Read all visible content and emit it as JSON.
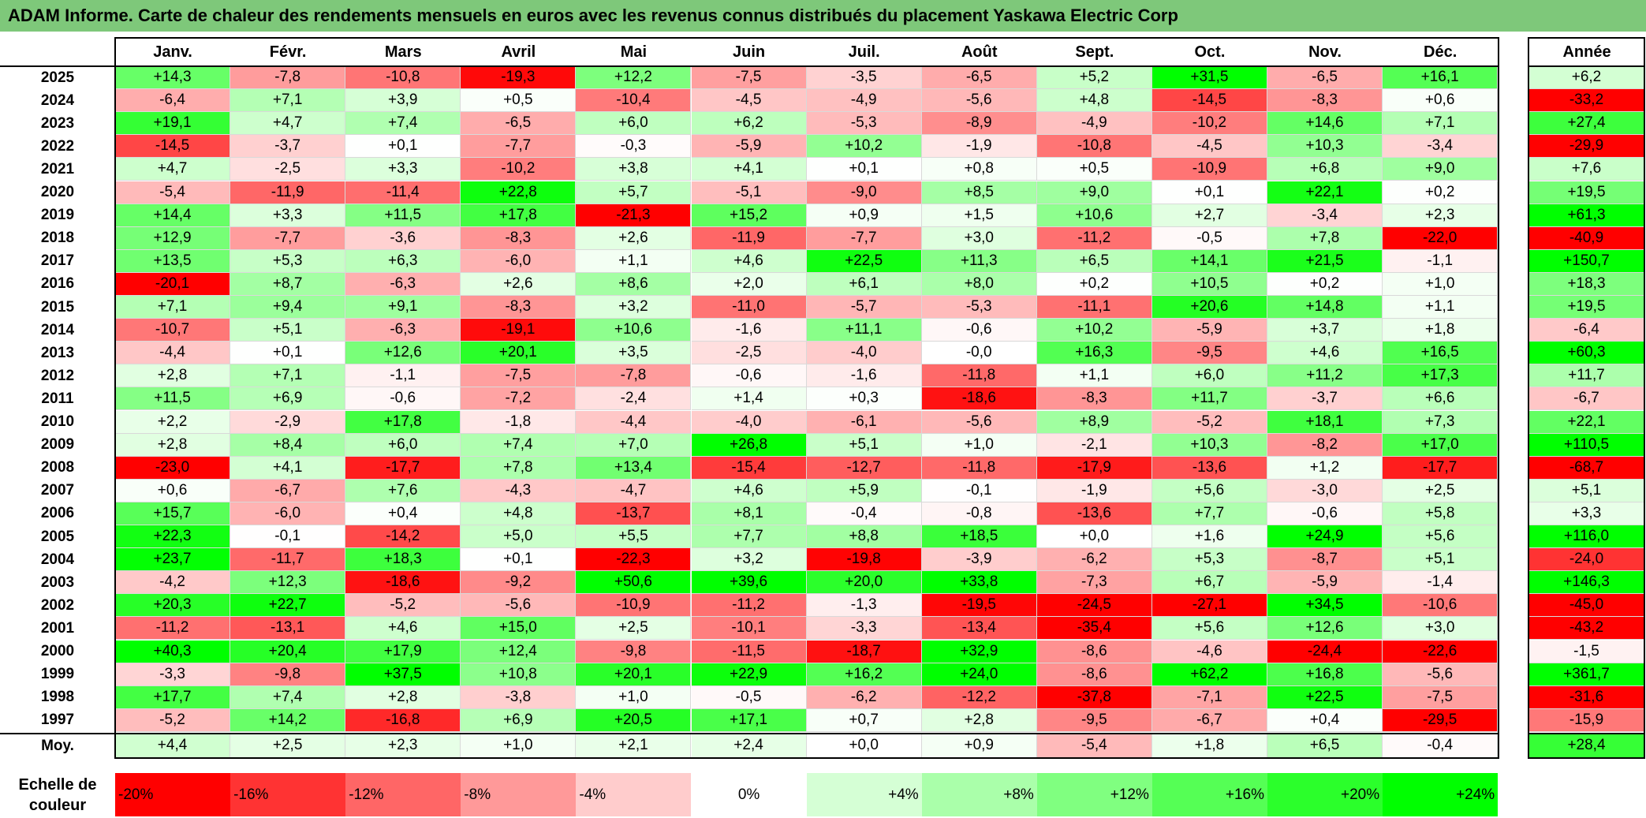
{
  "title": "ADAM Informe. Carte de chaleur des rendements mensuels en euros avec les revenus connus distribués du placement Yaskawa Electric Corp",
  "chart_data": {
    "type": "heatmap",
    "columns": [
      "Janv.",
      "Févr.",
      "Mars",
      "Avril",
      "Mai",
      "Juin",
      "Juil.",
      "Août",
      "Sept.",
      "Oct.",
      "Nov.",
      "Déc."
    ],
    "year_column_label": "Année",
    "rows": [
      {
        "year": "2025",
        "values": [
          "+14,3",
          "-7,8",
          "-10,8",
          "-19,3",
          "+12,2",
          "-7,5",
          "-3,5",
          "-6,5",
          "+5,2",
          "+31,5",
          "-6,5",
          "+16,1"
        ],
        "annual": "+6,2"
      },
      {
        "year": "2024",
        "values": [
          "-6,4",
          "+7,1",
          "+3,9",
          "+0,5",
          "-10,4",
          "-4,5",
          "-4,9",
          "-5,6",
          "+4,8",
          "-14,5",
          "-8,3",
          "+0,6"
        ],
        "annual": "-33,2"
      },
      {
        "year": "2023",
        "values": [
          "+19,1",
          "+4,7",
          "+7,4",
          "-6,5",
          "+6,0",
          "+6,2",
          "-5,3",
          "-8,9",
          "-4,9",
          "-10,2",
          "+14,6",
          "+7,1"
        ],
        "annual": "+27,4"
      },
      {
        "year": "2022",
        "values": [
          "-14,5",
          "-3,7",
          "+0,1",
          "-7,7",
          "-0,3",
          "-5,9",
          "+10,2",
          "-1,9",
          "-10,8",
          "-4,5",
          "+10,3",
          "-3,4"
        ],
        "annual": "-29,9"
      },
      {
        "year": "2021",
        "values": [
          "+4,7",
          "-2,5",
          "+3,3",
          "-10,2",
          "+3,8",
          "+4,1",
          "+0,1",
          "+0,8",
          "+0,5",
          "-10,9",
          "+6,8",
          "+9,0"
        ],
        "annual": "+7,6"
      },
      {
        "year": "2020",
        "values": [
          "-5,4",
          "-11,9",
          "-11,4",
          "+22,8",
          "+5,7",
          "-5,1",
          "-9,0",
          "+8,5",
          "+9,0",
          "+0,1",
          "+22,1",
          "+0,2"
        ],
        "annual": "+19,5"
      },
      {
        "year": "2019",
        "values": [
          "+14,4",
          "+3,3",
          "+11,5",
          "+17,8",
          "-21,3",
          "+15,2",
          "+0,9",
          "+1,5",
          "+10,6",
          "+2,7",
          "-3,4",
          "+2,3"
        ],
        "annual": "+61,3"
      },
      {
        "year": "2018",
        "values": [
          "+12,9",
          "-7,7",
          "-3,6",
          "-8,3",
          "+2,6",
          "-11,9",
          "-7,7",
          "+3,0",
          "-11,2",
          "-0,5",
          "+7,8",
          "-22,0"
        ],
        "annual": "-40,9"
      },
      {
        "year": "2017",
        "values": [
          "+13,5",
          "+5,3",
          "+6,3",
          "-6,0",
          "+1,1",
          "+4,6",
          "+22,5",
          "+11,3",
          "+6,5",
          "+14,1",
          "+21,5",
          "-1,1"
        ],
        "annual": "+150,7"
      },
      {
        "year": "2016",
        "values": [
          "-20,1",
          "+8,7",
          "-6,3",
          "+2,6",
          "+8,6",
          "+2,0",
          "+6,1",
          "+8,0",
          "+0,2",
          "+10,5",
          "+0,2",
          "+1,0"
        ],
        "annual": "+18,3"
      },
      {
        "year": "2015",
        "values": [
          "+7,1",
          "+9,4",
          "+9,1",
          "-8,3",
          "+3,2",
          "-11,0",
          "-5,7",
          "-5,3",
          "-11,1",
          "+20,6",
          "+14,8",
          "+1,1"
        ],
        "annual": "+19,5"
      },
      {
        "year": "2014",
        "values": [
          "-10,7",
          "+5,1",
          "-6,3",
          "-19,1",
          "+10,6",
          "-1,6",
          "+11,1",
          "-0,6",
          "+10,2",
          "-5,9",
          "+3,7",
          "+1,8"
        ],
        "annual": "-6,4"
      },
      {
        "year": "2013",
        "values": [
          "-4,4",
          "+0,1",
          "+12,6",
          "+20,1",
          "+3,5",
          "-2,5",
          "-4,0",
          "-0,0",
          "+16,3",
          "-9,5",
          "+4,6",
          "+16,5"
        ],
        "annual": "+60,3"
      },
      {
        "year": "2012",
        "values": [
          "+2,8",
          "+7,1",
          "-1,1",
          "-7,5",
          "-7,8",
          "-0,6",
          "-1,6",
          "-11,8",
          "+1,1",
          "+6,0",
          "+11,2",
          "+17,3"
        ],
        "annual": "+11,7"
      },
      {
        "year": "2011",
        "values": [
          "+11,5",
          "+6,9",
          "-0,6",
          "-7,2",
          "-2,4",
          "+1,4",
          "+0,3",
          "-18,6",
          "-8,3",
          "+11,7",
          "-3,7",
          "+6,6"
        ],
        "annual": "-6,7"
      },
      {
        "year": "2010",
        "values": [
          "+2,2",
          "-2,9",
          "+17,8",
          "-1,8",
          "-4,4",
          "-4,0",
          "-6,1",
          "-5,6",
          "+8,9",
          "-5,2",
          "+18,1",
          "+7,3"
        ],
        "annual": "+22,1"
      },
      {
        "year": "2009",
        "values": [
          "+2,8",
          "+8,4",
          "+6,0",
          "+7,4",
          "+7,0",
          "+26,8",
          "+5,1",
          "+1,0",
          "-2,1",
          "+10,3",
          "-8,2",
          "+17,0"
        ],
        "annual": "+110,5"
      },
      {
        "year": "2008",
        "values": [
          "-23,0",
          "+4,1",
          "-17,7",
          "+7,8",
          "+13,4",
          "-15,4",
          "-12,7",
          "-11,8",
          "-17,9",
          "-13,6",
          "+1,2",
          "-17,7"
        ],
        "annual": "-68,7"
      },
      {
        "year": "2007",
        "values": [
          "+0,6",
          "-6,7",
          "+7,6",
          "-4,3",
          "-4,7",
          "+4,6",
          "+5,9",
          "-0,1",
          "-1,9",
          "+5,6",
          "-3,0",
          "+2,5"
        ],
        "annual": "+5,1"
      },
      {
        "year": "2006",
        "values": [
          "+15,7",
          "-6,0",
          "+0,4",
          "+4,8",
          "-13,7",
          "+8,1",
          "-0,4",
          "-0,8",
          "-13,6",
          "+7,7",
          "-0,6",
          "+5,8"
        ],
        "annual": "+3,3"
      },
      {
        "year": "2005",
        "values": [
          "+22,3",
          "-0,1",
          "-14,2",
          "+5,0",
          "+5,5",
          "+7,7",
          "+8,8",
          "+18,5",
          "+0,0",
          "+1,6",
          "+24,9",
          "+5,6"
        ],
        "annual": "+116,0"
      },
      {
        "year": "2004",
        "values": [
          "+23,7",
          "-11,7",
          "+18,3",
          "+0,1",
          "-22,3",
          "+3,2",
          "-19,8",
          "-3,9",
          "-6,2",
          "+5,3",
          "-8,7",
          "+5,1"
        ],
        "annual": "-24,0"
      },
      {
        "year": "2003",
        "values": [
          "-4,2",
          "+12,3",
          "-18,6",
          "-9,2",
          "+50,6",
          "+39,6",
          "+20,0",
          "+33,8",
          "-7,3",
          "+6,7",
          "-5,9",
          "-1,4"
        ],
        "annual": "+146,3"
      },
      {
        "year": "2002",
        "values": [
          "+20,3",
          "+22,7",
          "-5,2",
          "-5,6",
          "-10,9",
          "-11,2",
          "-1,3",
          "-19,5",
          "-24,5",
          "-27,1",
          "+34,5",
          "-10,6"
        ],
        "annual": "-45,0"
      },
      {
        "year": "2001",
        "values": [
          "-11,2",
          "-13,1",
          "+4,6",
          "+15,0",
          "+2,5",
          "-10,1",
          "-3,3",
          "-13,4",
          "-35,4",
          "+5,6",
          "+12,6",
          "+3,0"
        ],
        "annual": "-43,2"
      },
      {
        "year": "2000",
        "values": [
          "+40,3",
          "+20,4",
          "+17,9",
          "+12,4",
          "-9,8",
          "-11,5",
          "-18,7",
          "+32,9",
          "-8,6",
          "-4,6",
          "-24,4",
          "-22,6"
        ],
        "annual": "-1,5"
      },
      {
        "year": "1999",
        "values": [
          "-3,3",
          "-9,8",
          "+37,5",
          "+10,8",
          "+20,1",
          "+22,9",
          "+16,2",
          "+24,0",
          "-8,6",
          "+62,2",
          "+16,8",
          "-5,6"
        ],
        "annual": "+361,7"
      },
      {
        "year": "1998",
        "values": [
          "+17,7",
          "+7,4",
          "+2,8",
          "-3,8",
          "+1,0",
          "-0,5",
          "-6,2",
          "-12,2",
          "-37,8",
          "-7,1",
          "+22,5",
          "-7,5"
        ],
        "annual": "-31,6"
      },
      {
        "year": "1997",
        "values": [
          "-5,2",
          "+14,2",
          "-16,8",
          "+6,9",
          "+20,5",
          "+17,1",
          "+0,7",
          "+2,8",
          "-9,5",
          "-6,7",
          "+0,4",
          "-29,5"
        ],
        "annual": "-15,9"
      }
    ],
    "average_row": {
      "label": "Moy.",
      "values": [
        "+4,4",
        "+2,5",
        "+2,3",
        "+1,0",
        "+2,1",
        "+2,4",
        "+0,0",
        "+0,9",
        "-5,4",
        "+1,8",
        "+6,5",
        "-0,4"
      ],
      "annual": "+28,4"
    },
    "color_scale": {
      "label_line1": "Echelle de",
      "label_line2": "couleur",
      "stops": [
        "-20%",
        "-16%",
        "-12%",
        "-8%",
        "-4%",
        "0%",
        "+4%",
        "+8%",
        "+12%",
        "+16%",
        "+20%",
        "+24%"
      ],
      "negative_color": "#ff0000",
      "neutral_color": "#ffffff",
      "positive_color": "#00ff00"
    }
  }
}
